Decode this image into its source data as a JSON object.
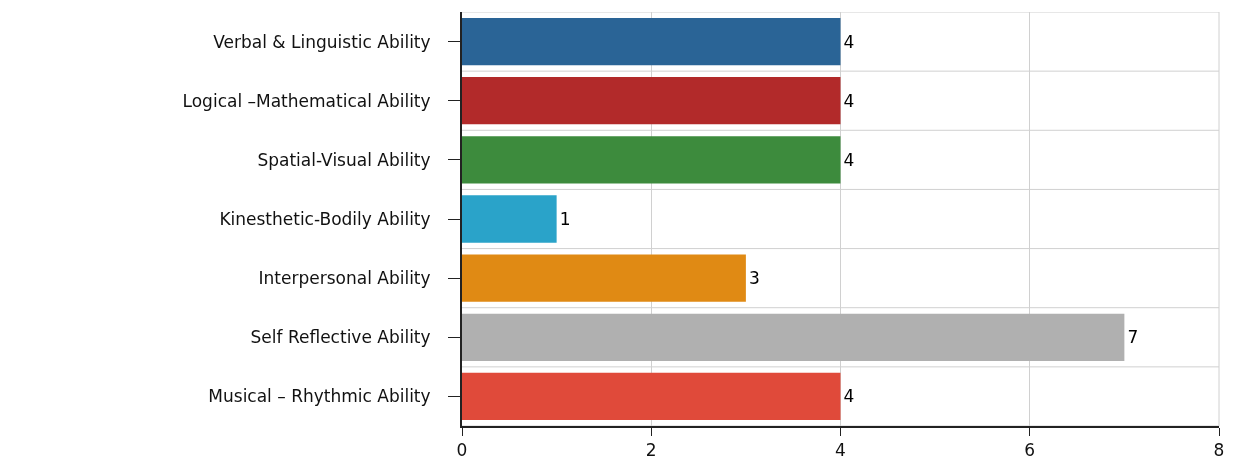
{
  "chart_data": {
    "type": "bar",
    "orientation": "horizontal",
    "categories": [
      "Verbal & Linguistic Ability",
      "Logical –Mathematical Ability",
      "Spatial-Visual Ability",
      "Kinesthetic-Bodily Ability",
      "Interpersonal Ability",
      "Self Reflective Ability",
      "Musical – Rhythmic Ability"
    ],
    "values": [
      4,
      4,
      4,
      1,
      3,
      7,
      4
    ],
    "colors": [
      "#2a6496",
      "#b22a2a",
      "#3d8b3d",
      "#2aa3c9",
      "#e08a14",
      "#b0b0b0",
      "#e04a3a"
    ],
    "xlim": [
      0,
      8
    ],
    "xticks": [
      0,
      2,
      4,
      6,
      8
    ],
    "grid": true,
    "data_labels": true
  }
}
